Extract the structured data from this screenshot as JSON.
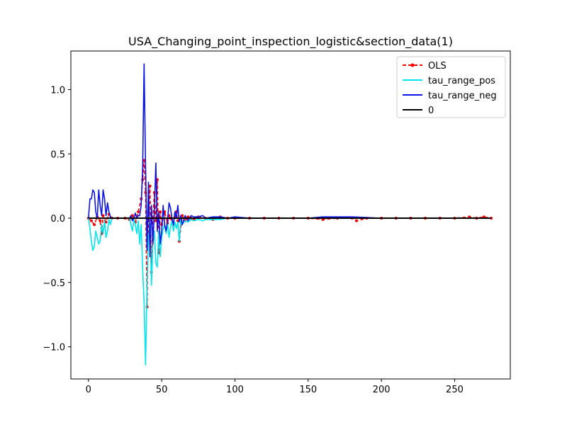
{
  "chart_data": {
    "type": "line",
    "title": "USA_Changing_point_inspection_logistic&section_data(1)",
    "xlabel": "",
    "ylabel": "",
    "xlim": [
      -12,
      288
    ],
    "ylim": [
      -1.25,
      1.3
    ],
    "xticks": [
      0,
      50,
      100,
      150,
      200,
      250
    ],
    "xtick_labels": [
      "0",
      "50",
      "100",
      "150",
      "200",
      "250"
    ],
    "yticks": [
      -1.0,
      -0.5,
      0.0,
      0.5,
      1.0
    ],
    "ytick_labels": [
      "−1.0",
      "−0.5",
      "0.0",
      "0.5",
      "1.0"
    ],
    "grid": false,
    "legend_position": "upper right",
    "series": [
      {
        "name": "OLS",
        "color": "#ff0000",
        "style": "dashed",
        "marker": "dot",
        "x": [
          0,
          2,
          4,
          6,
          8,
          9,
          10,
          12,
          14,
          16,
          20,
          25,
          28,
          30,
          32,
          34,
          36,
          37,
          38,
          39,
          40,
          41,
          42,
          43,
          44,
          45,
          46,
          47,
          48,
          49,
          50,
          52,
          54,
          55,
          56,
          58,
          60,
          61,
          62,
          64,
          66,
          68,
          70,
          72,
          75,
          80,
          85,
          90,
          95,
          100,
          110,
          120,
          130,
          140,
          150,
          160,
          170,
          180,
          183,
          190,
          200,
          210,
          220,
          230,
          240,
          250,
          260,
          265,
          270,
          275
        ],
        "y": [
          0.0,
          -0.02,
          -0.05,
          0.01,
          -0.02,
          -0.12,
          0.02,
          -0.03,
          0.03,
          0.0,
          0.0,
          0.0,
          -0.01,
          0.02,
          -0.03,
          0.05,
          0.15,
          0.3,
          0.45,
          0.2,
          -0.69,
          0.05,
          0.25,
          -0.42,
          0.0,
          0.2,
          -0.02,
          0.3,
          -0.27,
          0.05,
          -0.05,
          0.05,
          -0.04,
          0.02,
          0.0,
          -0.05,
          0.05,
          -0.02,
          -0.18,
          0.02,
          -0.02,
          0.01,
          0.0,
          -0.01,
          0.01,
          0.0,
          -0.01,
          0.01,
          0.0,
          0.0,
          0.0,
          0.0,
          0.0,
          0.0,
          0.0,
          -0.01,
          0.0,
          0.0,
          -0.02,
          0.0,
          0.0,
          0.0,
          0.0,
          0.0,
          0.0,
          0.0,
          0.01,
          0.0,
          0.01,
          0.0
        ]
      },
      {
        "name": "tau_range_pos",
        "color": "#00e5ee",
        "style": "solid",
        "x": [
          0,
          1,
          2,
          3,
          4,
          5,
          6,
          7,
          8,
          9,
          10,
          11,
          12,
          13,
          14,
          15,
          16,
          20,
          25,
          28,
          29,
          30,
          31,
          32,
          33,
          34,
          35,
          36,
          37,
          38,
          39,
          40,
          41,
          42,
          43,
          44,
          45,
          46,
          47,
          48,
          49,
          50,
          51,
          52,
          53,
          54,
          55,
          56,
          57,
          58,
          59,
          60,
          61,
          62,
          63,
          64,
          66,
          68,
          70,
          72,
          75,
          78,
          80,
          85,
          90,
          95,
          100,
          110,
          120,
          150,
          200,
          250,
          270,
          273
        ],
        "y": [
          0.0,
          -0.08,
          -0.18,
          -0.25,
          -0.22,
          -0.1,
          -0.15,
          -0.2,
          -0.18,
          -0.05,
          -0.12,
          -0.02,
          -0.15,
          -0.1,
          -0.01,
          -0.05,
          0.0,
          0.0,
          0.0,
          0.0,
          -0.05,
          -0.1,
          -0.01,
          -0.05,
          -0.12,
          -0.02,
          -0.2,
          -0.05,
          -0.4,
          -0.65,
          -1.14,
          -0.5,
          -0.15,
          -0.05,
          -0.52,
          -0.2,
          -0.1,
          -0.35,
          -0.38,
          -0.1,
          -0.3,
          -0.15,
          -0.08,
          -0.05,
          -0.12,
          -0.04,
          -0.15,
          -0.07,
          -0.02,
          -0.1,
          -0.03,
          -0.08,
          -0.03,
          -0.18,
          -0.02,
          -0.05,
          -0.02,
          -0.03,
          -0.01,
          -0.02,
          -0.01,
          -0.02,
          -0.01,
          -0.01,
          -0.01,
          0.0,
          0.0,
          0.0,
          0.0,
          0.0,
          0.0,
          0.0,
          0.0,
          0.0
        ]
      },
      {
        "name": "tau_range_neg",
        "color": "#0a14e6",
        "style": "solid",
        "x": [
          0,
          1,
          2,
          3,
          4,
          5,
          6,
          7,
          8,
          9,
          10,
          11,
          12,
          13,
          14,
          15,
          16,
          20,
          25,
          28,
          29,
          30,
          31,
          32,
          33,
          34,
          35,
          36,
          37,
          38,
          39,
          40,
          41,
          42,
          43,
          44,
          45,
          46,
          47,
          48,
          49,
          50,
          51,
          52,
          53,
          54,
          55,
          56,
          57,
          58,
          59,
          60,
          61,
          62,
          63,
          64,
          66,
          68,
          70,
          72,
          75,
          78,
          80,
          85,
          90,
          95,
          100,
          110,
          120,
          150,
          160,
          180,
          200,
          250,
          270,
          273
        ],
        "y": [
          0.0,
          0.15,
          0.15,
          0.22,
          0.2,
          0.05,
          0.0,
          0.22,
          0.1,
          0.02,
          0.22,
          0.15,
          0.02,
          0.12,
          0.05,
          0.01,
          0.0,
          0.0,
          0.0,
          0.0,
          0.02,
          -0.02,
          0.0,
          0.04,
          0.0,
          0.02,
          0.02,
          0.1,
          0.4,
          1.2,
          0.4,
          -0.25,
          0.28,
          -0.3,
          0.1,
          -0.2,
          0.05,
          0.43,
          -0.1,
          0.05,
          -0.2,
          -0.1,
          0.1,
          -0.05,
          -0.1,
          -0.02,
          0.12,
          0.08,
          0.0,
          -0.05,
          0.05,
          0.0,
          0.1,
          -0.03,
          0.02,
          -0.05,
          0.02,
          -0.02,
          0.02,
          0.01,
          0.01,
          0.02,
          0.0,
          0.01,
          0.01,
          0.0,
          0.01,
          0.0,
          0.0,
          0.0,
          0.01,
          0.01,
          0.0,
          0.0,
          0.0,
          0.0
        ]
      },
      {
        "name": "0",
        "color": "#000000",
        "style": "solid",
        "x": [
          0,
          275
        ],
        "y": [
          0.0,
          0.0
        ]
      }
    ]
  }
}
